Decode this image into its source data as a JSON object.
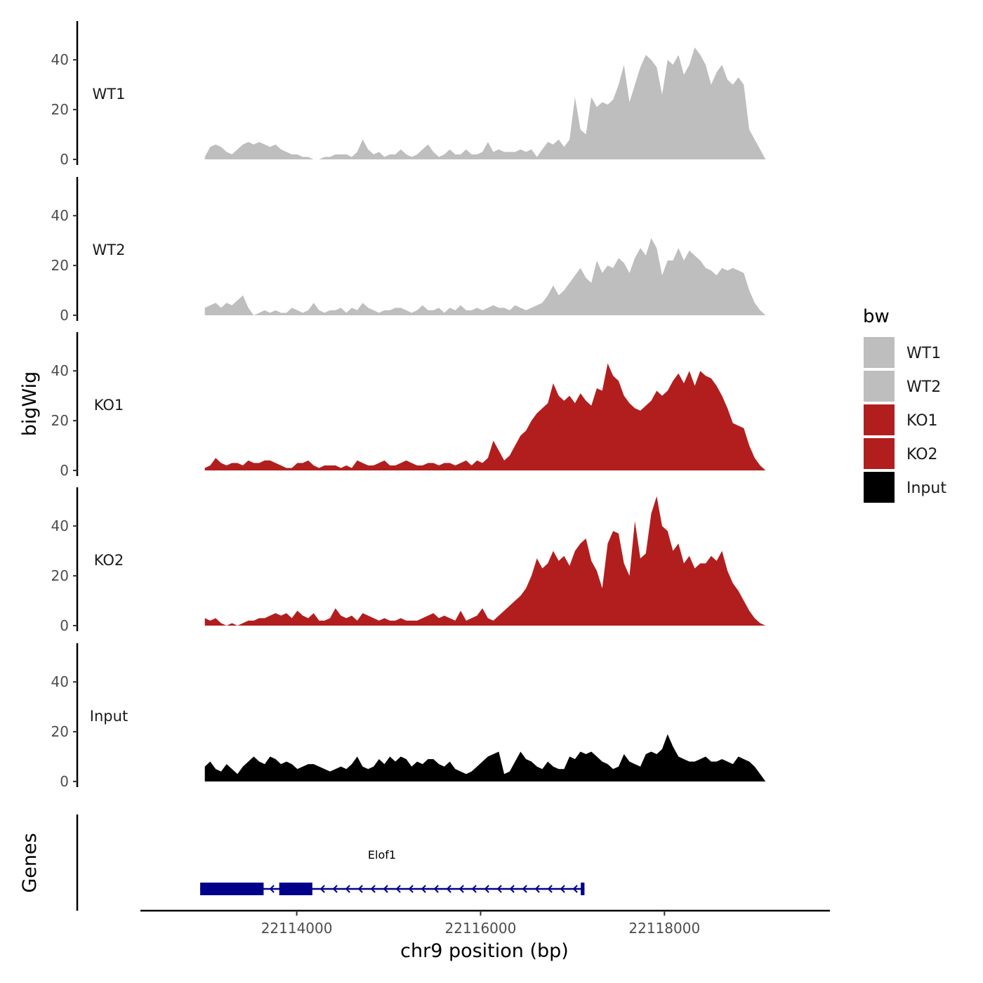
{
  "chart_data": {
    "type": "area",
    "title": "",
    "xlabel": "chr9 position (bp)",
    "ylabel": "bigWig",
    "genes_label": "Genes",
    "xlim": [
      22112300,
      22119800
    ],
    "x_ticks": [
      22114000,
      22116000,
      22118000
    ],
    "x_tick_labels": [
      "22114000",
      "22116000",
      "22118000"
    ],
    "ylim": [
      0,
      55
    ],
    "y_ticks": [
      0,
      20,
      40
    ],
    "y_tick_labels": [
      "0",
      "20",
      "40"
    ],
    "x_start": 22113000,
    "x_end": 22119100,
    "legend": {
      "title": "bw",
      "position": "right",
      "entries": [
        {
          "label": "WT1",
          "color": "#bebebe"
        },
        {
          "label": "WT2",
          "color": "#bebebe"
        },
        {
          "label": "KO1",
          "color": "#b21e1e"
        },
        {
          "label": "KO2",
          "color": "#b21e1e"
        },
        {
          "label": "Input",
          "color": "#000000"
        }
      ]
    },
    "series": [
      {
        "name": "WT1",
        "color": "#bebebe",
        "values": [
          1,
          5,
          6,
          5,
          3,
          2,
          4,
          6,
          7,
          6,
          7,
          6,
          5,
          6,
          4,
          3,
          2,
          2,
          1,
          1,
          0,
          0,
          1,
          1,
          2,
          2,
          2,
          1,
          3,
          8,
          4,
          2,
          3,
          1,
          2,
          2,
          4,
          2,
          1,
          2,
          4,
          6,
          3,
          1,
          2,
          4,
          2,
          2,
          4,
          2,
          2,
          3,
          7,
          3,
          4,
          3,
          3,
          3,
          4,
          3,
          4,
          1,
          4,
          7,
          6,
          8,
          5,
          8,
          25,
          12,
          10,
          25,
          21,
          23,
          22,
          24,
          30,
          38,
          23,
          30,
          37,
          42,
          40,
          37,
          26,
          40,
          38,
          42,
          34,
          38,
          45,
          42,
          38,
          30,
          35,
          38,
          32,
          30,
          33,
          30,
          12,
          8,
          4,
          0
        ]
      },
      {
        "name": "WT2",
        "color": "#bebebe",
        "values": [
          3,
          4,
          5,
          3,
          5,
          4,
          6,
          8,
          3,
          0,
          1,
          2,
          1,
          2,
          1,
          1,
          3,
          2,
          1,
          2,
          5,
          2,
          1,
          2,
          2,
          3,
          1,
          3,
          2,
          5,
          3,
          2,
          1,
          2,
          2,
          3,
          3,
          2,
          1,
          2,
          4,
          2,
          2,
          3,
          1,
          3,
          2,
          4,
          2,
          2,
          3,
          2,
          3,
          4,
          3,
          3,
          2,
          4,
          3,
          2,
          3,
          4,
          5,
          8,
          12,
          8,
          10,
          13,
          16,
          19,
          15,
          13,
          22,
          17,
          20,
          19,
          23,
          21,
          17,
          23,
          27,
          24,
          31,
          27,
          16,
          22,
          22,
          27,
          22,
          26,
          24,
          22,
          19,
          18,
          16,
          19,
          18,
          19,
          18,
          17,
          10,
          5,
          2,
          0
        ]
      },
      {
        "name": "KO1",
        "color": "#b21e1e",
        "values": [
          1,
          2,
          5,
          3,
          2,
          3,
          3,
          2,
          4,
          3,
          3,
          4,
          4,
          3,
          2,
          1,
          1,
          3,
          3,
          4,
          2,
          1,
          2,
          2,
          2,
          1,
          2,
          1,
          4,
          3,
          2,
          2,
          3,
          4,
          2,
          2,
          3,
          4,
          3,
          2,
          2,
          3,
          3,
          2,
          3,
          3,
          2,
          3,
          4,
          2,
          4,
          3,
          5,
          12,
          8,
          4,
          6,
          10,
          14,
          16,
          20,
          23,
          25,
          27,
          35,
          30,
          28,
          30,
          27,
          31,
          28,
          26,
          33,
          32,
          43,
          38,
          36,
          30,
          27,
          25,
          24,
          26,
          28,
          32,
          30,
          32,
          36,
          39,
          35,
          40,
          34,
          40,
          38,
          37,
          34,
          30,
          25,
          19,
          18,
          17,
          10,
          5,
          2,
          0
        ]
      },
      {
        "name": "KO2",
        "color": "#b21e1e",
        "values": [
          3,
          2,
          3,
          1,
          0,
          1,
          0,
          1,
          2,
          2,
          3,
          3,
          4,
          5,
          4,
          5,
          3,
          6,
          4,
          3,
          5,
          2,
          2,
          3,
          7,
          4,
          3,
          4,
          2,
          5,
          4,
          3,
          2,
          3,
          2,
          2,
          3,
          2,
          2,
          2,
          3,
          4,
          5,
          3,
          4,
          3,
          2,
          6,
          2,
          3,
          4,
          7,
          3,
          2,
          4,
          6,
          8,
          10,
          12,
          15,
          20,
          27,
          23,
          25,
          30,
          26,
          28,
          24,
          30,
          33,
          35,
          26,
          22,
          15,
          33,
          38,
          37,
          25,
          20,
          42,
          27,
          29,
          45,
          52,
          40,
          38,
          30,
          33,
          25,
          28,
          23,
          25,
          25,
          28,
          26,
          30,
          22,
          17,
          14,
          10,
          6,
          3,
          1,
          0
        ]
      },
      {
        "name": "Input",
        "color": "#000000",
        "values": [
          6,
          8,
          5,
          4,
          7,
          5,
          3,
          6,
          8,
          10,
          8,
          7,
          10,
          9,
          7,
          8,
          7,
          5,
          6,
          7,
          7,
          6,
          5,
          4,
          5,
          6,
          5,
          7,
          10,
          6,
          5,
          6,
          9,
          7,
          10,
          8,
          10,
          9,
          6,
          8,
          7,
          9,
          9,
          7,
          6,
          8,
          5,
          4,
          3,
          4,
          6,
          8,
          10,
          11,
          12,
          3,
          4,
          8,
          12,
          9,
          8,
          6,
          5,
          8,
          6,
          5,
          5,
          10,
          9,
          12,
          11,
          12,
          10,
          8,
          7,
          5,
          6,
          11,
          8,
          7,
          6,
          11,
          12,
          11,
          13,
          19,
          14,
          10,
          9,
          8,
          8,
          9,
          10,
          8,
          8,
          9,
          8,
          7,
          10,
          9,
          8,
          6,
          3,
          0
        ]
      }
    ],
    "annotations": [
      {
        "type": "gene",
        "name": "Elof1",
        "strand": "-",
        "start": 22112950,
        "end": 22117130,
        "exons": [
          [
            22112950,
            22113640
          ],
          [
            22113810,
            22114170
          ],
          [
            22117090,
            22117130
          ]
        ]
      }
    ]
  }
}
